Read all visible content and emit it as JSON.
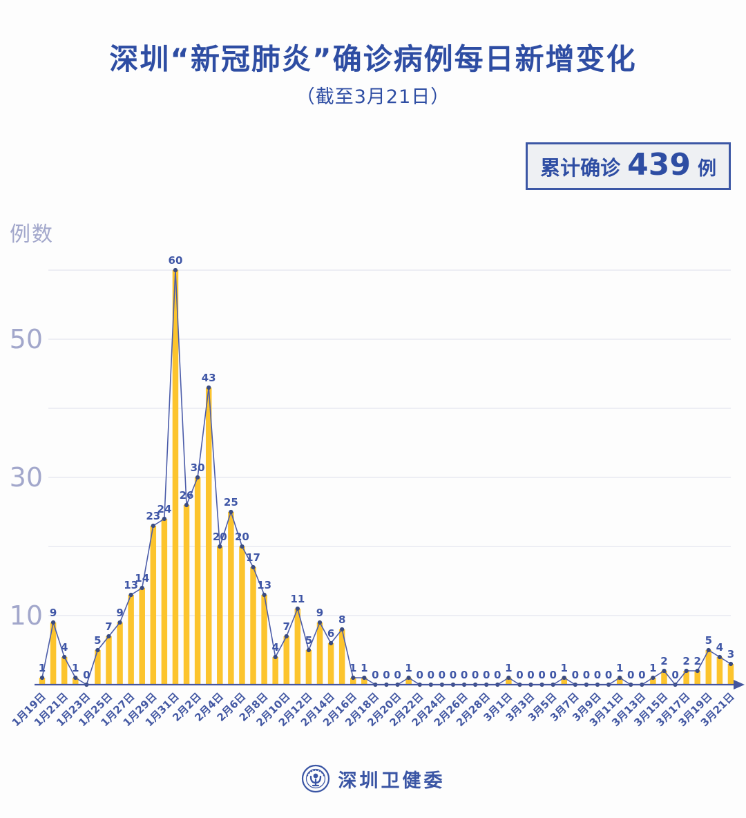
{
  "header": {
    "title": "深圳“新冠肺炎”确诊病例每日新增变化",
    "subtitle": "（截至3月21日）",
    "badge": {
      "label": "累计确诊",
      "value": "439",
      "unit": "例"
    }
  },
  "chart_data": {
    "type": "bar",
    "title": "深圳“新冠肺炎”确诊病例每日新增变化",
    "ylabel": "例数",
    "xlabel": "",
    "categories": [
      "1月19日",
      "1月20日",
      "1月21日",
      "1月22日",
      "1月23日",
      "1月24日",
      "1月25日",
      "1月26日",
      "1月27日",
      "1月28日",
      "1月29日",
      "1月30日",
      "1月31日",
      "2月1日",
      "2月2日",
      "2月3日",
      "2月4日",
      "2月5日",
      "2月6日",
      "2月7日",
      "2月8日",
      "2月9日",
      "2月10日",
      "2月11日",
      "2月12日",
      "2月13日",
      "2月14日",
      "2月15日",
      "2月16日",
      "2月17日",
      "2月18日",
      "2月19日",
      "2月20日",
      "2月21日",
      "2月22日",
      "2月23日",
      "2月24日",
      "2月25日",
      "2月26日",
      "2月27日",
      "2月28日",
      "2月29日",
      "3月1日",
      "3月2日",
      "3月3日",
      "3月4日",
      "3月5日",
      "3月6日",
      "3月7日",
      "3月8日",
      "3月9日",
      "3月10日",
      "3月11日",
      "3月12日",
      "3月13日",
      "3月14日",
      "3月15日",
      "3月16日",
      "3月17日",
      "3月18日",
      "3月19日",
      "3月20日",
      "3月21日"
    ],
    "values": [
      1,
      9,
      4,
      1,
      0,
      5,
      7,
      9,
      13,
      14,
      23,
      24,
      60,
      26,
      30,
      43,
      20,
      25,
      20,
      17,
      13,
      4,
      7,
      11,
      5,
      9,
      6,
      8,
      1,
      1,
      0,
      0,
      0,
      1,
      0,
      0,
      0,
      0,
      0,
      0,
      0,
      0,
      1,
      0,
      0,
      0,
      0,
      1,
      0,
      0,
      0,
      0,
      1,
      0,
      0,
      1,
      2,
      0,
      2,
      2,
      5,
      4,
      3
    ],
    "x_tick_every": 2,
    "yticks_labeled": [
      10,
      30,
      50
    ],
    "gridline_values": [
      10,
      20,
      30,
      40,
      50,
      60
    ],
    "ylim": [
      0,
      63
    ],
    "grid": "on",
    "legend": "none",
    "marker": "dot",
    "value_labels": "on"
  },
  "footer": {
    "org": "深圳卫健委"
  },
  "colors": {
    "title_blue": "#2e4da3",
    "bar_yellow": "#fcc42d",
    "line_blue": "#4b5ca9",
    "dot_navy": "#3a4b80",
    "value_label_blue": "#3f56a6",
    "axis_blue": "#44569f",
    "tick_label_blue": "#4257a2",
    "y_label_gray": "#a2a7cb",
    "gridline_gray": "#e4e5ee",
    "badge_bg": "#eef0f3"
  }
}
